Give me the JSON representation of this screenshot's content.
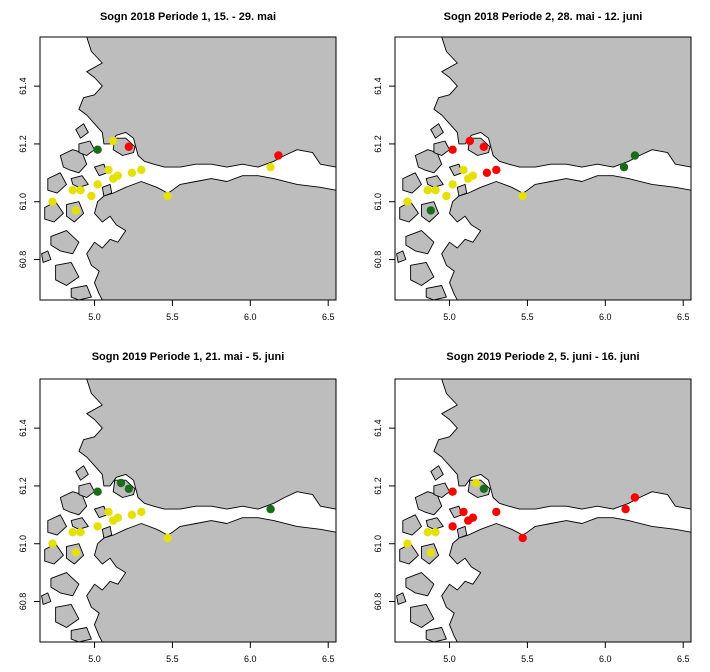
{
  "colors": {
    "land": "#bdbdbd",
    "sea": "#ffffff",
    "low": "#e6e000",
    "moderate": "#ff0000",
    "high_green": "#1a6b1a"
  },
  "axes": {
    "xlim": [
      4.65,
      6.55
    ],
    "ylim": [
      60.66,
      61.57
    ],
    "x_ticks": [
      "5.0",
      "5.5",
      "6.0",
      "6.5"
    ],
    "x_tick_values": [
      5.0,
      5.5,
      6.0,
      6.5
    ],
    "y_ticks": [
      "60.8",
      "61.0",
      "61.2",
      "61.4"
    ],
    "y_tick_values": [
      60.8,
      61.0,
      61.2,
      61.4
    ]
  },
  "panels": [
    {
      "title": "Sogn 2018 Periode 1, 15. - 29. mai",
      "sites": [
        {
          "lon": 5.02,
          "lat": 61.18,
          "color": "green"
        },
        {
          "lon": 5.12,
          "lat": 61.21,
          "color": "yellow"
        },
        {
          "lon": 5.22,
          "lat": 61.19,
          "color": "red"
        },
        {
          "lon": 6.18,
          "lat": 61.16,
          "color": "red"
        },
        {
          "lon": 6.13,
          "lat": 61.12,
          "color": "yellow"
        },
        {
          "lon": 5.09,
          "lat": 61.11,
          "color": "yellow"
        },
        {
          "lon": 5.12,
          "lat": 61.08,
          "color": "yellow"
        },
        {
          "lon": 5.15,
          "lat": 61.09,
          "color": "yellow"
        },
        {
          "lon": 5.24,
          "lat": 61.1,
          "color": "yellow"
        },
        {
          "lon": 5.3,
          "lat": 61.11,
          "color": "yellow"
        },
        {
          "lon": 5.02,
          "lat": 61.06,
          "color": "yellow"
        },
        {
          "lon": 4.86,
          "lat": 61.04,
          "color": "yellow"
        },
        {
          "lon": 4.91,
          "lat": 61.04,
          "color": "yellow"
        },
        {
          "lon": 4.98,
          "lat": 61.02,
          "color": "yellow"
        },
        {
          "lon": 4.73,
          "lat": 61.0,
          "color": "yellow"
        },
        {
          "lon": 4.88,
          "lat": 60.97,
          "color": "yellow"
        },
        {
          "lon": 5.47,
          "lat": 61.02,
          "color": "yellow"
        }
      ]
    },
    {
      "title": "Sogn 2018 Periode 2, 28. mai - 12. juni",
      "sites": [
        {
          "lon": 5.02,
          "lat": 61.18,
          "color": "red"
        },
        {
          "lon": 5.13,
          "lat": 61.21,
          "color": "red"
        },
        {
          "lon": 5.22,
          "lat": 61.19,
          "color": "red"
        },
        {
          "lon": 6.19,
          "lat": 61.16,
          "color": "green"
        },
        {
          "lon": 6.12,
          "lat": 61.12,
          "color": "green"
        },
        {
          "lon": 5.09,
          "lat": 61.11,
          "color": "yellow"
        },
        {
          "lon": 5.12,
          "lat": 61.08,
          "color": "yellow"
        },
        {
          "lon": 5.15,
          "lat": 61.09,
          "color": "yellow"
        },
        {
          "lon": 5.24,
          "lat": 61.1,
          "color": "red"
        },
        {
          "lon": 5.3,
          "lat": 61.11,
          "color": "red"
        },
        {
          "lon": 5.02,
          "lat": 61.06,
          "color": "yellow"
        },
        {
          "lon": 4.86,
          "lat": 61.04,
          "color": "yellow"
        },
        {
          "lon": 4.91,
          "lat": 61.04,
          "color": "yellow"
        },
        {
          "lon": 4.98,
          "lat": 61.02,
          "color": "yellow"
        },
        {
          "lon": 4.73,
          "lat": 61.0,
          "color": "yellow"
        },
        {
          "lon": 4.88,
          "lat": 60.97,
          "color": "green"
        },
        {
          "lon": 5.47,
          "lat": 61.02,
          "color": "yellow"
        }
      ]
    },
    {
      "title": "Sogn 2019 Periode 1, 21. mai - 5. juni",
      "sites": [
        {
          "lon": 5.02,
          "lat": 61.18,
          "color": "green"
        },
        {
          "lon": 5.17,
          "lat": 61.21,
          "color": "green"
        },
        {
          "lon": 5.22,
          "lat": 61.19,
          "color": "green"
        },
        {
          "lon": 6.13,
          "lat": 61.12,
          "color": "green"
        },
        {
          "lon": 5.09,
          "lat": 61.11,
          "color": "yellow"
        },
        {
          "lon": 5.12,
          "lat": 61.08,
          "color": "yellow"
        },
        {
          "lon": 5.15,
          "lat": 61.09,
          "color": "yellow"
        },
        {
          "lon": 5.24,
          "lat": 61.1,
          "color": "yellow"
        },
        {
          "lon": 5.3,
          "lat": 61.11,
          "color": "yellow"
        },
        {
          "lon": 5.02,
          "lat": 61.06,
          "color": "yellow"
        },
        {
          "lon": 4.86,
          "lat": 61.04,
          "color": "yellow"
        },
        {
          "lon": 4.91,
          "lat": 61.04,
          "color": "yellow"
        },
        {
          "lon": 4.73,
          "lat": 61.0,
          "color": "yellow"
        },
        {
          "lon": 4.88,
          "lat": 60.97,
          "color": "yellow"
        },
        {
          "lon": 5.47,
          "lat": 61.02,
          "color": "yellow"
        }
      ]
    },
    {
      "title": "Sogn 2019 Periode 2, 5. juni - 16. juni",
      "sites": [
        {
          "lon": 5.02,
          "lat": 61.18,
          "color": "red"
        },
        {
          "lon": 5.17,
          "lat": 61.21,
          "color": "yellow"
        },
        {
          "lon": 5.22,
          "lat": 61.19,
          "color": "green"
        },
        {
          "lon": 6.19,
          "lat": 61.16,
          "color": "red"
        },
        {
          "lon": 6.13,
          "lat": 61.12,
          "color": "red"
        },
        {
          "lon": 5.09,
          "lat": 61.11,
          "color": "red"
        },
        {
          "lon": 5.12,
          "lat": 61.08,
          "color": "red"
        },
        {
          "lon": 5.15,
          "lat": 61.09,
          "color": "red"
        },
        {
          "lon": 5.3,
          "lat": 61.11,
          "color": "red"
        },
        {
          "lon": 5.02,
          "lat": 61.06,
          "color": "red"
        },
        {
          "lon": 4.86,
          "lat": 61.04,
          "color": "yellow"
        },
        {
          "lon": 4.91,
          "lat": 61.04,
          "color": "yellow"
        },
        {
          "lon": 4.73,
          "lat": 61.0,
          "color": "yellow"
        },
        {
          "lon": 4.88,
          "lat": 60.97,
          "color": "yellow"
        },
        {
          "lon": 5.47,
          "lat": 61.02,
          "color": "red"
        }
      ]
    }
  ]
}
